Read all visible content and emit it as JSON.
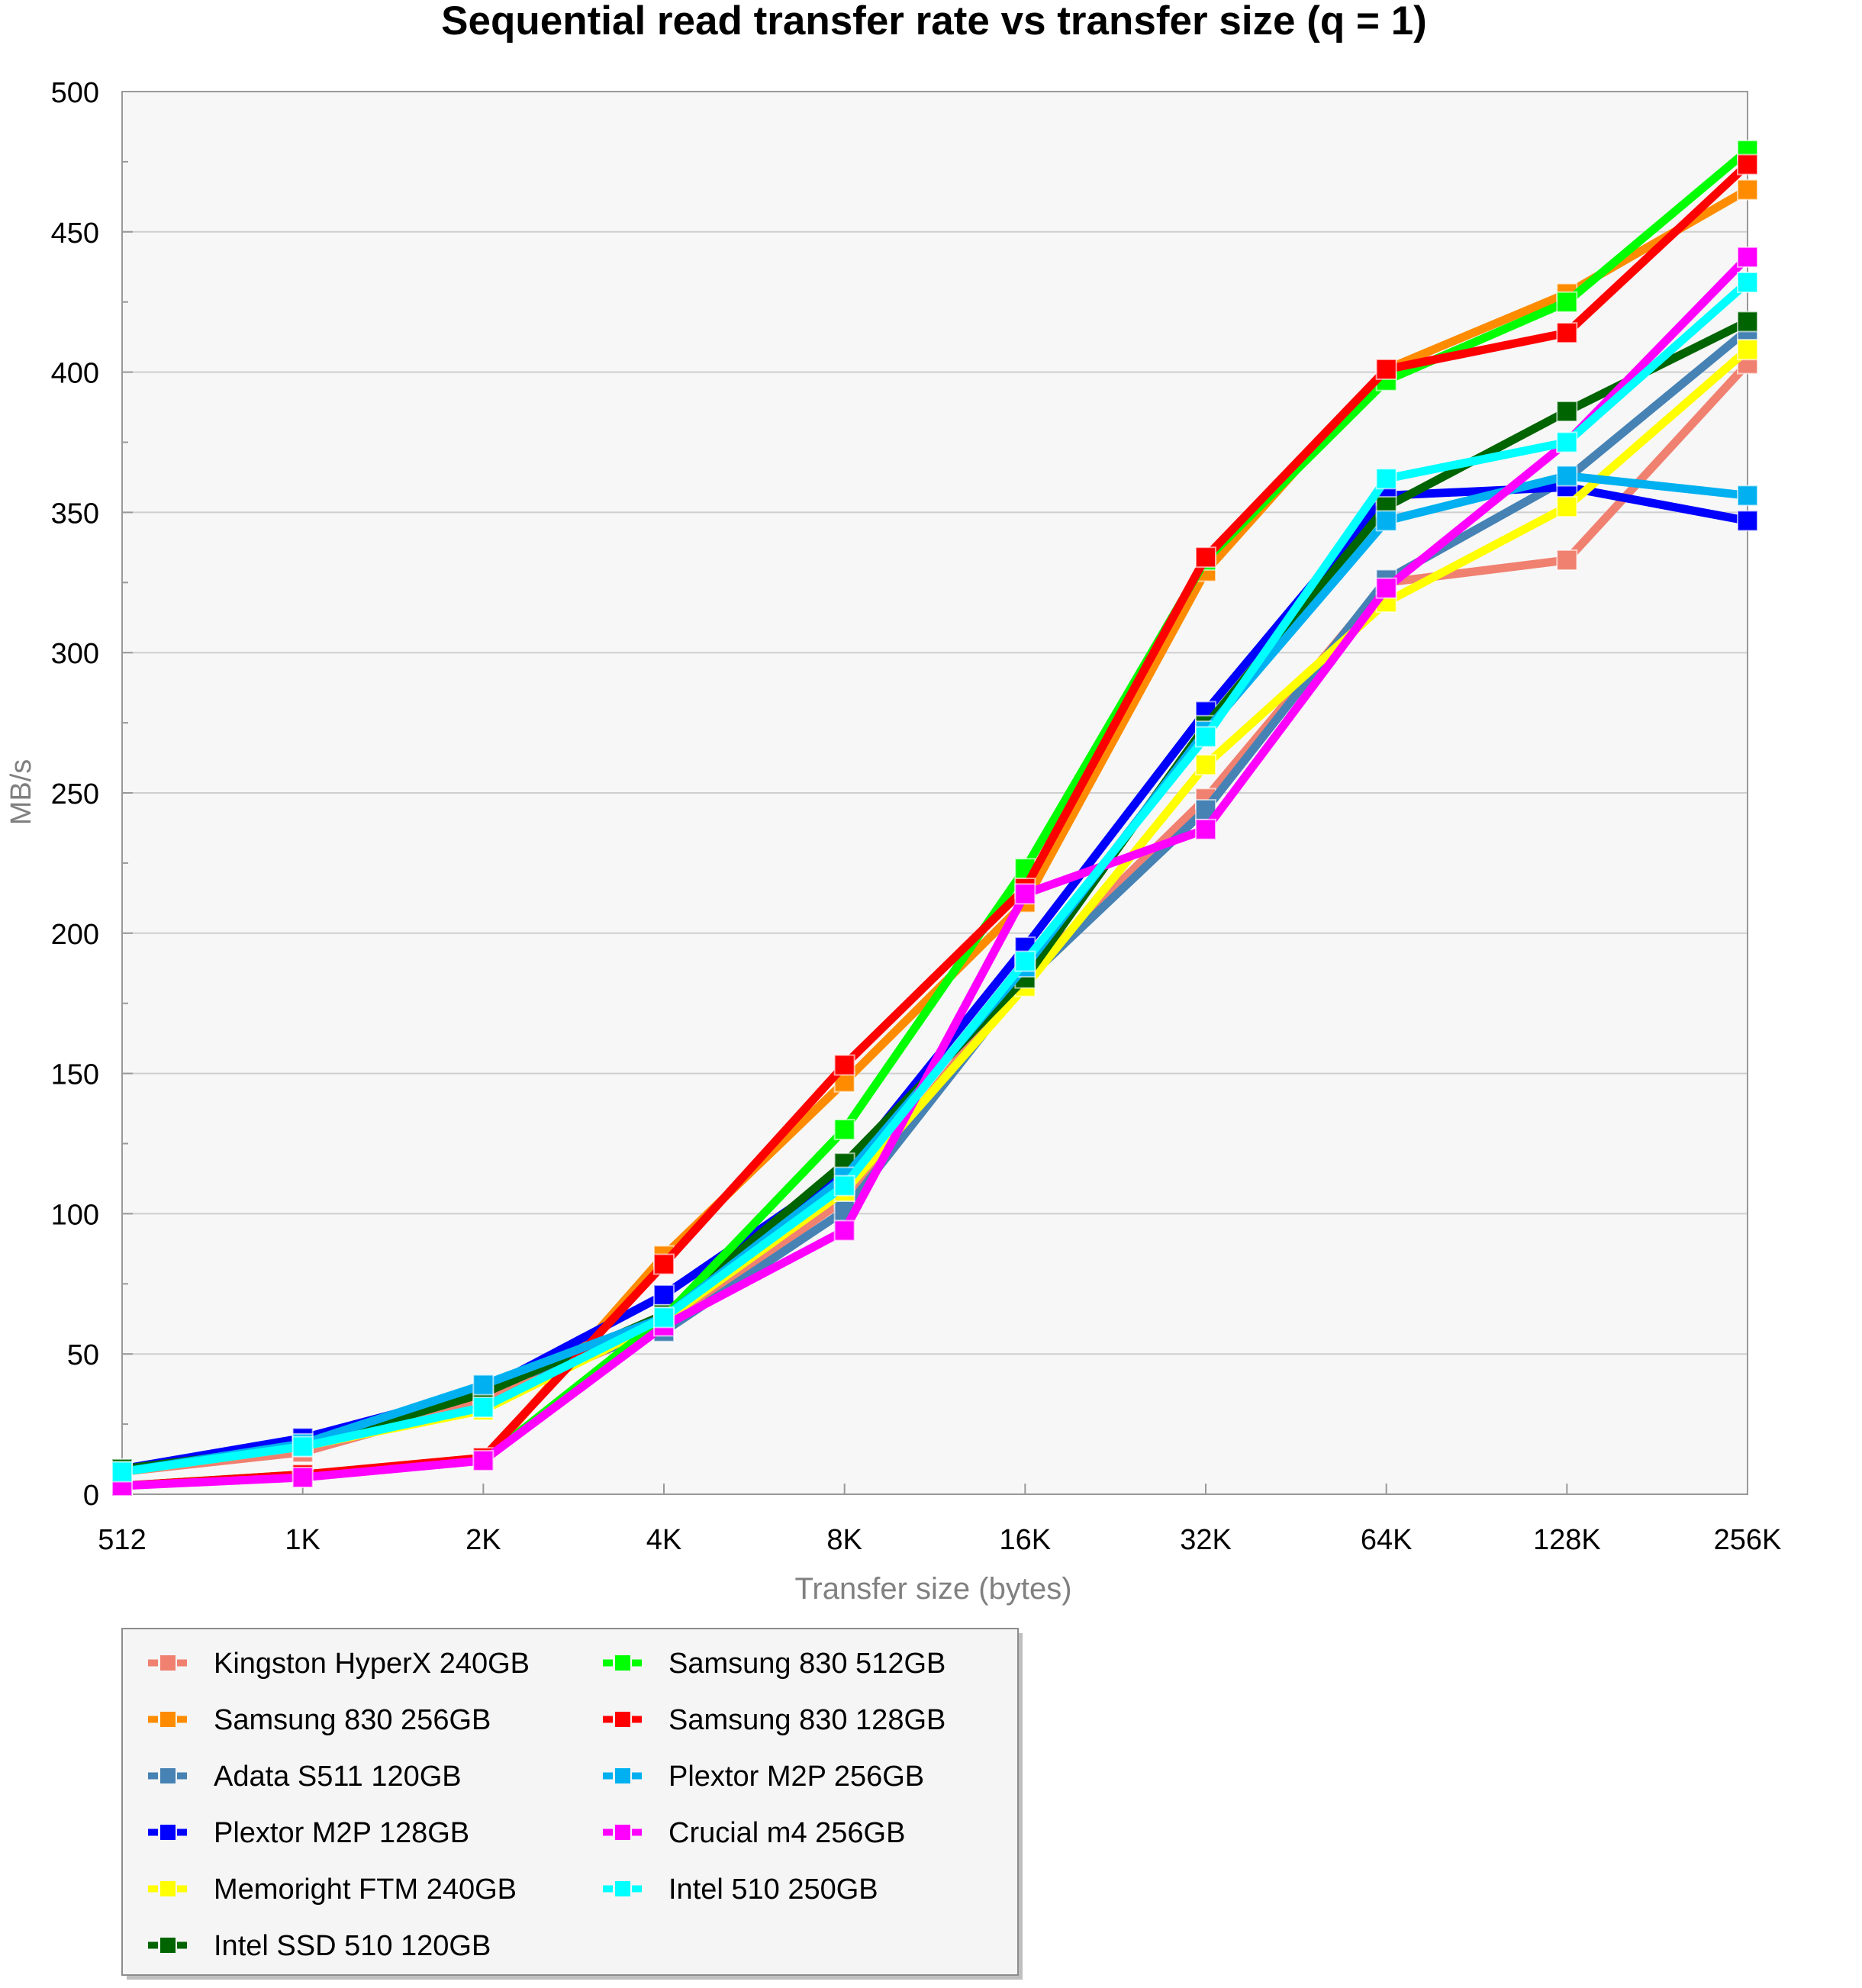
{
  "chart_data": {
    "type": "line",
    "title": "Sequential read transfer rate vs transfer size (q = 1)",
    "xlabel": "Transfer size (bytes)",
    "ylabel": "MB/s",
    "categories": [
      "512",
      "1K",
      "2K",
      "4K",
      "8K",
      "16K",
      "32K",
      "64K",
      "128K",
      "256K"
    ],
    "ylim": [
      0,
      500
    ],
    "yticks": [
      0,
      50,
      100,
      150,
      200,
      250,
      300,
      350,
      400,
      450,
      500
    ],
    "grid": "horizontal",
    "legend_position": "bottom-left",
    "legend_columns": 2,
    "colors": {
      "plot_background": "#f7f7f7",
      "grid": "#cfcfcf",
      "axis": "#999999",
      "axis_label_text": "#808080",
      "legend_background": "#f5f5f5"
    },
    "series": [
      {
        "name": "Kingston HyperX 240GB",
        "color": "#f08070",
        "values": [
          8,
          15,
          33,
          60,
          105,
          185,
          248,
          325,
          333,
          403
        ]
      },
      {
        "name": "Samsung 830 256GB",
        "color": "#ff8c00",
        "values": [
          3,
          7,
          12,
          85,
          147,
          211,
          329,
          401,
          428,
          465
        ]
      },
      {
        "name": "Adata S511 120GB",
        "color": "#4682b4",
        "values": [
          8,
          18,
          38,
          58,
          101,
          183,
          244,
          326,
          362,
          415
        ]
      },
      {
        "name": "Plextor M2P 128GB",
        "color": "#0000ff",
        "values": [
          9,
          20,
          37,
          71,
          115,
          195,
          279,
          356,
          359,
          347
        ]
      },
      {
        "name": "Memoright FTM 240GB",
        "color": "#ffff00",
        "values": [
          8,
          17,
          30,
          62,
          108,
          181,
          260,
          318,
          352,
          408
        ]
      },
      {
        "name": "Intel SSD 510 120GB",
        "color": "#006400",
        "values": [
          9,
          17,
          36,
          64,
          118,
          184,
          274,
          352,
          386,
          418
        ]
      },
      {
        "name": "Samsung 830 512GB",
        "color": "#00ff00",
        "values": [
          3,
          7,
          12,
          63,
          130,
          223,
          333,
          397,
          425,
          479
        ]
      },
      {
        "name": "Samsung 830 128GB",
        "color": "#ff0000",
        "values": [
          3,
          7,
          13,
          82,
          153,
          216,
          334,
          401,
          414,
          474
        ]
      },
      {
        "name": "Plextor M2P 256GB",
        "color": "#00b0f0",
        "values": [
          8,
          18,
          39,
          63,
          113,
          188,
          272,
          347,
          363,
          356
        ]
      },
      {
        "name": "Crucial m4 256GB",
        "color": "#ff00ff",
        "values": [
          3,
          6,
          12,
          60,
          94,
          214,
          237,
          323,
          375,
          441
        ]
      },
      {
        "name": "Intel 510 250GB",
        "color": "#00ffff",
        "values": [
          8,
          17,
          31,
          63,
          110,
          190,
          270,
          362,
          375,
          432
        ]
      }
    ]
  }
}
